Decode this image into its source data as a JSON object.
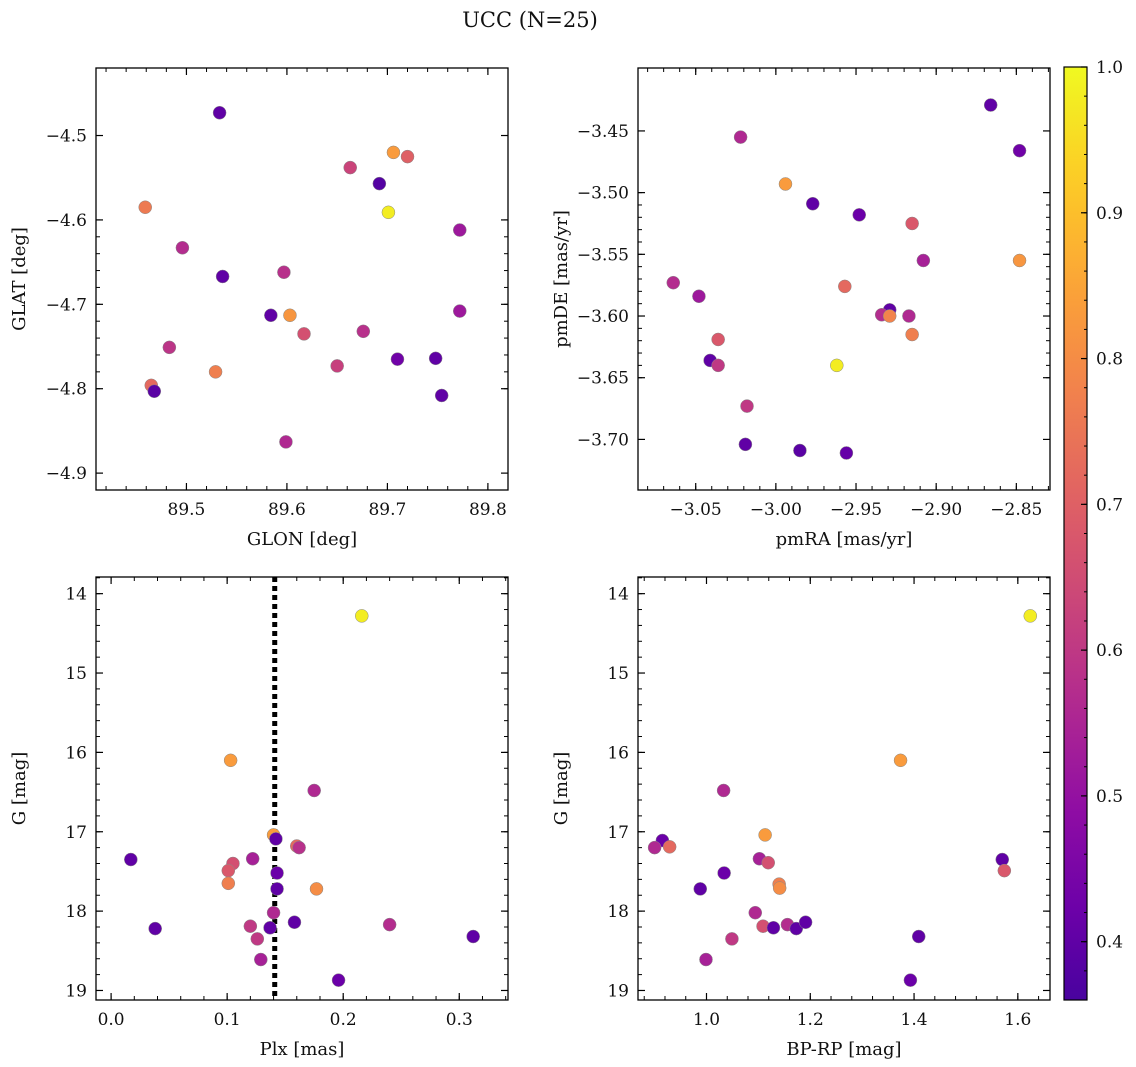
{
  "title": "UCC (N=25)",
  "colorbar": {
    "range": [
      0.36,
      1.0
    ],
    "ticks": [
      0.4,
      0.5,
      0.6,
      0.7,
      0.8,
      0.9,
      1.0
    ],
    "tick_labels": [
      "0.4",
      "0.5",
      "0.6",
      "0.7",
      "0.8",
      "0.9",
      "1.0"
    ],
    "colormap": "plasma"
  },
  "chart_data": [
    {
      "type": "scatter",
      "xlabel": "GLON [deg]",
      "ylabel": "GLAT [deg]",
      "xlim": [
        89.41,
        89.82
      ],
      "ylim": [
        -4.92,
        -4.42
      ],
      "x_ticks": [
        89.5,
        89.6,
        89.7,
        89.8
      ],
      "x_tick_labels": [
        "89.5",
        "89.6",
        "89.7",
        "89.8"
      ],
      "y_ticks": [
        -4.5,
        -4.6,
        -4.7,
        -4.8,
        -4.9
      ],
      "y_tick_labels": [
        "−4.5",
        "−4.6",
        "−4.7",
        "−4.8",
        "−4.9"
      ],
      "points": [
        {
          "x": 89.706,
          "y": -4.52,
          "c": 0.83
        },
        {
          "x": 89.72,
          "y": -4.525,
          "c": 0.7
        },
        {
          "x": 89.701,
          "y": -4.591,
          "c": 0.98
        },
        {
          "x": 89.533,
          "y": -4.473,
          "c": 0.4
        },
        {
          "x": 89.663,
          "y": -4.538,
          "c": 0.63
        },
        {
          "x": 89.692,
          "y": -4.557,
          "c": 0.38
        },
        {
          "x": 89.459,
          "y": -4.585,
          "c": 0.76
        },
        {
          "x": 89.772,
          "y": -4.612,
          "c": 0.52
        },
        {
          "x": 89.496,
          "y": -4.633,
          "c": 0.57
        },
        {
          "x": 89.536,
          "y": -4.667,
          "c": 0.4
        },
        {
          "x": 89.597,
          "y": -4.662,
          "c": 0.58
        },
        {
          "x": 89.772,
          "y": -4.708,
          "c": 0.52
        },
        {
          "x": 89.584,
          "y": -4.713,
          "c": 0.4
        },
        {
          "x": 89.603,
          "y": -4.713,
          "c": 0.82
        },
        {
          "x": 89.617,
          "y": -4.735,
          "c": 0.66
        },
        {
          "x": 89.676,
          "y": -4.732,
          "c": 0.58
        },
        {
          "x": 89.483,
          "y": -4.751,
          "c": 0.59
        },
        {
          "x": 89.71,
          "y": -4.765,
          "c": 0.43
        },
        {
          "x": 89.748,
          "y": -4.764,
          "c": 0.4
        },
        {
          "x": 89.65,
          "y": -4.773,
          "c": 0.62
        },
        {
          "x": 89.529,
          "y": -4.78,
          "c": 0.77
        },
        {
          "x": 89.465,
          "y": -4.796,
          "c": 0.72
        },
        {
          "x": 89.468,
          "y": -4.803,
          "c": 0.39
        },
        {
          "x": 89.754,
          "y": -4.808,
          "c": 0.4
        },
        {
          "x": 89.599,
          "y": -4.863,
          "c": 0.56
        }
      ]
    },
    {
      "type": "scatter",
      "xlabel": "pmRA [mas/yr]",
      "ylabel": "pmDE [mas/yr]",
      "xlim": [
        -3.086,
        -2.829
      ],
      "ylim": [
        -3.741,
        -3.399
      ],
      "x_ticks": [
        -3.05,
        -3.0,
        -2.95,
        -2.9,
        -2.85
      ],
      "x_tick_labels": [
        "−3.05",
        "−3.00",
        "−2.95",
        "−2.90",
        "−2.85"
      ],
      "y_ticks": [
        -3.45,
        -3.5,
        -3.55,
        -3.6,
        -3.65,
        -3.7
      ],
      "y_tick_labels": [
        "−3.45",
        "−3.50",
        "−3.55",
        "−3.60",
        "−3.65",
        "−3.70"
      ],
      "points": [
        {
          "x": -2.866,
          "y": -3.429,
          "c": 0.4
        },
        {
          "x": -2.848,
          "y": -3.466,
          "c": 0.43
        },
        {
          "x": -3.022,
          "y": -3.455,
          "c": 0.56
        },
        {
          "x": -2.994,
          "y": -3.493,
          "c": 0.83
        },
        {
          "x": -2.977,
          "y": -3.509,
          "c": 0.4
        },
        {
          "x": -2.948,
          "y": -3.518,
          "c": 0.42
        },
        {
          "x": -2.915,
          "y": -3.525,
          "c": 0.68
        },
        {
          "x": -2.908,
          "y": -3.555,
          "c": 0.54
        },
        {
          "x": -2.848,
          "y": -3.555,
          "c": 0.82
        },
        {
          "x": -3.064,
          "y": -3.573,
          "c": 0.57
        },
        {
          "x": -2.957,
          "y": -3.576,
          "c": 0.72
        },
        {
          "x": -3.048,
          "y": -3.584,
          "c": 0.52
        },
        {
          "x": -2.929,
          "y": -3.595,
          "c": 0.4
        },
        {
          "x": -2.934,
          "y": -3.599,
          "c": 0.57
        },
        {
          "x": -2.929,
          "y": -3.6,
          "c": 0.78
        },
        {
          "x": -2.917,
          "y": -3.6,
          "c": 0.56
        },
        {
          "x": -3.036,
          "y": -3.619,
          "c": 0.68
        },
        {
          "x": -2.915,
          "y": -3.615,
          "c": 0.77
        },
        {
          "x": -3.041,
          "y": -3.636,
          "c": 0.4
        },
        {
          "x": -3.036,
          "y": -3.64,
          "c": 0.6
        },
        {
          "x": -2.962,
          "y": -3.64,
          "c": 0.98
        },
        {
          "x": -3.018,
          "y": -3.673,
          "c": 0.6
        },
        {
          "x": -3.019,
          "y": -3.704,
          "c": 0.4
        },
        {
          "x": -2.985,
          "y": -3.709,
          "c": 0.39
        },
        {
          "x": -2.956,
          "y": -3.711,
          "c": 0.41
        }
      ]
    },
    {
      "type": "scatter",
      "xlabel": "Plx [mas]",
      "ylabel": "G [mag]",
      "xlim": [
        -0.013,
        0.342
      ],
      "ylim": [
        19.12,
        13.79
      ],
      "vline": 0.141,
      "x_ticks": [
        0.0,
        0.1,
        0.2,
        0.3
      ],
      "x_tick_labels": [
        "0.0",
        "0.1",
        "0.2",
        "0.3"
      ],
      "y_ticks": [
        14,
        15,
        16,
        17,
        18,
        19
      ],
      "y_tick_labels": [
        "14",
        "15",
        "16",
        "17",
        "18",
        "19"
      ],
      "points": [
        {
          "x": 0.216,
          "y": 14.28,
          "c": 0.98
        },
        {
          "x": 0.103,
          "y": 16.1,
          "c": 0.83
        },
        {
          "x": 0.175,
          "y": 16.48,
          "c": 0.56
        },
        {
          "x": 0.14,
          "y": 17.04,
          "c": 0.83
        },
        {
          "x": 0.142,
          "y": 17.09,
          "c": 0.4
        },
        {
          "x": 0.16,
          "y": 17.18,
          "c": 0.72
        },
        {
          "x": 0.162,
          "y": 17.2,
          "c": 0.58
        },
        {
          "x": 0.017,
          "y": 17.35,
          "c": 0.4
        },
        {
          "x": 0.122,
          "y": 17.34,
          "c": 0.54
        },
        {
          "x": 0.105,
          "y": 17.4,
          "c": 0.66
        },
        {
          "x": 0.101,
          "y": 17.49,
          "c": 0.68
        },
        {
          "x": 0.143,
          "y": 17.52,
          "c": 0.42
        },
        {
          "x": 0.101,
          "y": 17.65,
          "c": 0.77
        },
        {
          "x": 0.143,
          "y": 17.72,
          "c": 0.4
        },
        {
          "x": 0.177,
          "y": 17.72,
          "c": 0.8
        },
        {
          "x": 0.14,
          "y": 18.02,
          "c": 0.56
        },
        {
          "x": 0.158,
          "y": 18.14,
          "c": 0.4
        },
        {
          "x": 0.24,
          "y": 18.17,
          "c": 0.57
        },
        {
          "x": 0.12,
          "y": 18.19,
          "c": 0.6
        },
        {
          "x": 0.137,
          "y": 18.21,
          "c": 0.4
        },
        {
          "x": 0.038,
          "y": 18.22,
          "c": 0.4
        },
        {
          "x": 0.126,
          "y": 18.35,
          "c": 0.6
        },
        {
          "x": 0.312,
          "y": 18.32,
          "c": 0.4
        },
        {
          "x": 0.129,
          "y": 18.61,
          "c": 0.54
        },
        {
          "x": 0.196,
          "y": 18.87,
          "c": 0.42
        }
      ]
    },
    {
      "type": "scatter",
      "xlabel": "BP-RP [mag]",
      "ylabel": "G [mag]",
      "xlim": [
        0.868,
        1.662
      ],
      "ylim": [
        19.12,
        13.79
      ],
      "x_ticks": [
        1.0,
        1.2,
        1.4,
        1.6
      ],
      "x_tick_labels": [
        "1.0",
        "1.2",
        "1.4",
        "1.6"
      ],
      "y_ticks": [
        14,
        15,
        16,
        17,
        18,
        19
      ],
      "y_tick_labels": [
        "14",
        "15",
        "16",
        "17",
        "18",
        "19"
      ],
      "points": [
        {
          "x": 1.624,
          "y": 14.28,
          "c": 0.98
        },
        {
          "x": 1.374,
          "y": 16.1,
          "c": 0.83
        },
        {
          "x": 1.033,
          "y": 16.48,
          "c": 0.56
        },
        {
          "x": 1.113,
          "y": 17.04,
          "c": 0.83
        },
        {
          "x": 0.915,
          "y": 17.11,
          "c": 0.42
        },
        {
          "x": 0.9,
          "y": 17.2,
          "c": 0.56
        },
        {
          "x": 0.929,
          "y": 17.19,
          "c": 0.72
        },
        {
          "x": 1.102,
          "y": 17.34,
          "c": 0.54
        },
        {
          "x": 1.119,
          "y": 17.39,
          "c": 0.66
        },
        {
          "x": 1.57,
          "y": 17.35,
          "c": 0.4
        },
        {
          "x": 1.574,
          "y": 17.49,
          "c": 0.68
        },
        {
          "x": 1.034,
          "y": 17.52,
          "c": 0.42
        },
        {
          "x": 1.14,
          "y": 17.66,
          "c": 0.77
        },
        {
          "x": 1.141,
          "y": 17.71,
          "c": 0.8
        },
        {
          "x": 0.988,
          "y": 17.72,
          "c": 0.4
        },
        {
          "x": 1.094,
          "y": 18.02,
          "c": 0.56
        },
        {
          "x": 1.109,
          "y": 18.19,
          "c": 0.66
        },
        {
          "x": 1.156,
          "y": 18.17,
          "c": 0.57
        },
        {
          "x": 1.129,
          "y": 18.21,
          "c": 0.4
        },
        {
          "x": 1.173,
          "y": 18.22,
          "c": 0.4
        },
        {
          "x": 1.191,
          "y": 18.14,
          "c": 0.4
        },
        {
          "x": 1.049,
          "y": 18.35,
          "c": 0.6
        },
        {
          "x": 1.409,
          "y": 18.32,
          "c": 0.4
        },
        {
          "x": 0.999,
          "y": 18.61,
          "c": 0.54
        },
        {
          "x": 1.393,
          "y": 18.87,
          "c": 0.42
        }
      ]
    }
  ]
}
